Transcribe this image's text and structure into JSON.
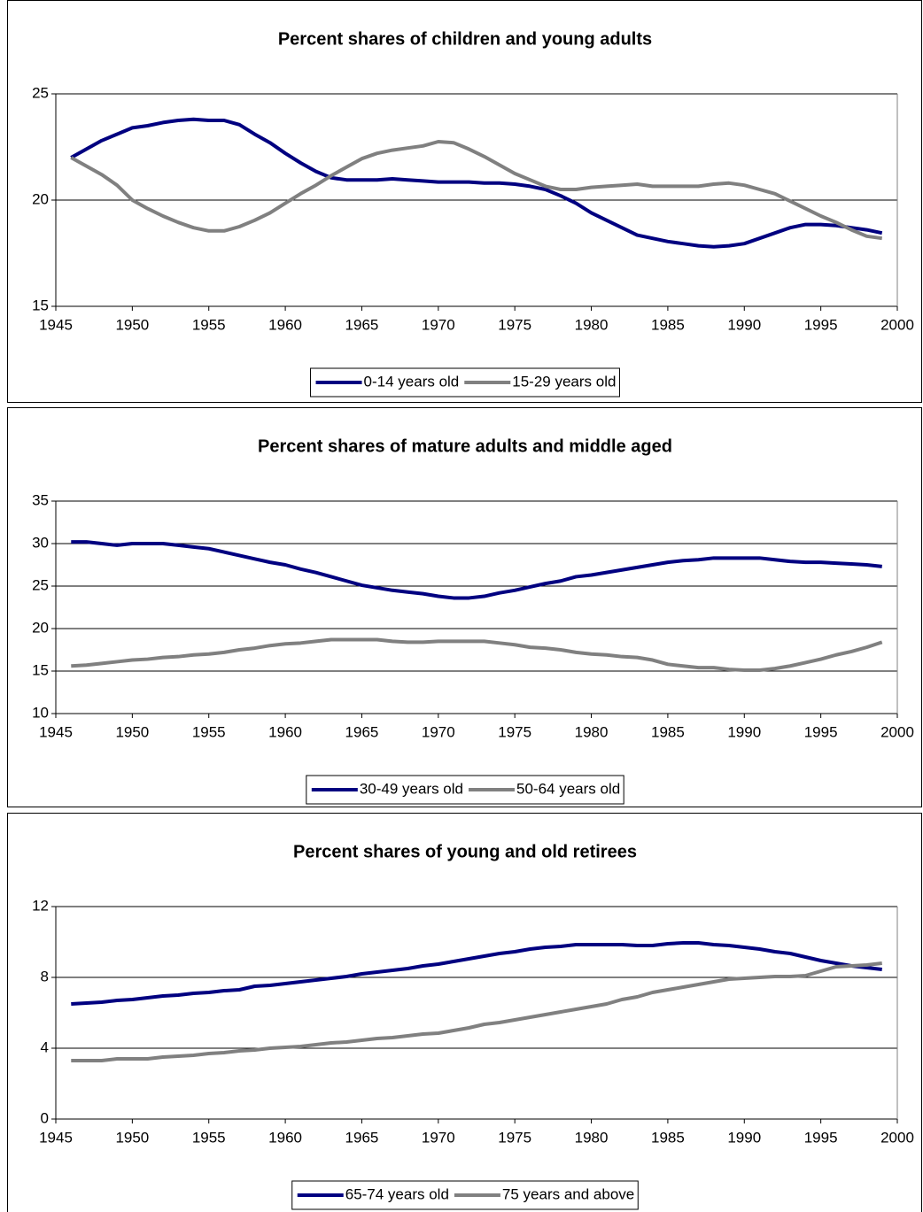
{
  "chart_data": [
    {
      "type": "line",
      "title": "Percent shares of children and young adults",
      "x": [
        1946,
        1947,
        1948,
        1949,
        1950,
        1951,
        1952,
        1953,
        1954,
        1955,
        1956,
        1957,
        1958,
        1959,
        1960,
        1961,
        1962,
        1963,
        1964,
        1965,
        1966,
        1967,
        1968,
        1969,
        1970,
        1971,
        1972,
        1973,
        1974,
        1975,
        1976,
        1977,
        1978,
        1979,
        1980,
        1981,
        1982,
        1983,
        1984,
        1985,
        1986,
        1987,
        1988,
        1989,
        1990,
        1991,
        1992,
        1993,
        1994,
        1995,
        1996,
        1997,
        1998,
        1999
      ],
      "xlim": [
        1945,
        2000
      ],
      "xticks": [
        1945,
        1950,
        1955,
        1960,
        1965,
        1970,
        1975,
        1980,
        1985,
        1990,
        1995,
        2000
      ],
      "ylim": [
        15,
        25
      ],
      "yticks": [
        15,
        20,
        25
      ],
      "grid": true,
      "legend": "bottom",
      "series": [
        {
          "name": "0-14 years old",
          "color": "#000080",
          "values": [
            22.0,
            22.4,
            22.8,
            23.1,
            23.4,
            23.5,
            23.65,
            23.75,
            23.8,
            23.75,
            23.75,
            23.55,
            23.1,
            22.7,
            22.2,
            21.75,
            21.35,
            21.05,
            20.95,
            20.95,
            20.95,
            21.0,
            20.95,
            20.9,
            20.85,
            20.85,
            20.85,
            20.8,
            20.8,
            20.75,
            20.65,
            20.5,
            20.2,
            19.85,
            19.4,
            19.05,
            18.7,
            18.35,
            18.2,
            18.05,
            17.95,
            17.85,
            17.8,
            17.85,
            17.95,
            18.2,
            18.45,
            18.7,
            18.85,
            18.85,
            18.8,
            18.7,
            18.6,
            18.45
          ]
        },
        {
          "name": "15-29 years old",
          "color": "#808080",
          "values": [
            22.0,
            21.6,
            21.2,
            20.7,
            20.0,
            19.6,
            19.25,
            18.95,
            18.7,
            18.55,
            18.55,
            18.75,
            19.05,
            19.4,
            19.85,
            20.3,
            20.7,
            21.15,
            21.55,
            21.95,
            22.2,
            22.35,
            22.45,
            22.55,
            22.75,
            22.7,
            22.4,
            22.05,
            21.65,
            21.25,
            20.95,
            20.65,
            20.5,
            20.5,
            20.6,
            20.65,
            20.7,
            20.75,
            20.65,
            20.65,
            20.65,
            20.65,
            20.75,
            20.8,
            20.7,
            20.5,
            20.3,
            19.95,
            19.6,
            19.25,
            18.95,
            18.6,
            18.3,
            18.2
          ]
        }
      ]
    },
    {
      "type": "line",
      "title": "Percent shares of mature adults and middle aged",
      "x": [
        1946,
        1947,
        1948,
        1949,
        1950,
        1951,
        1952,
        1953,
        1954,
        1955,
        1956,
        1957,
        1958,
        1959,
        1960,
        1961,
        1962,
        1963,
        1964,
        1965,
        1966,
        1967,
        1968,
        1969,
        1970,
        1971,
        1972,
        1973,
        1974,
        1975,
        1976,
        1977,
        1978,
        1979,
        1980,
        1981,
        1982,
        1983,
        1984,
        1985,
        1986,
        1987,
        1988,
        1989,
        1990,
        1991,
        1992,
        1993,
        1994,
        1995,
        1996,
        1997,
        1998,
        1999
      ],
      "xlim": [
        1945,
        2000
      ],
      "xticks": [
        1945,
        1950,
        1955,
        1960,
        1965,
        1970,
        1975,
        1980,
        1985,
        1990,
        1995,
        2000
      ],
      "ylim": [
        10,
        35
      ],
      "yticks": [
        10,
        15,
        20,
        25,
        30,
        35
      ],
      "grid": true,
      "legend": "bottom",
      "series": [
        {
          "name": "30-49 years old",
          "color": "#000080",
          "values": [
            30.2,
            30.2,
            30.0,
            29.8,
            30.0,
            30.0,
            30.0,
            29.8,
            29.6,
            29.4,
            29.0,
            28.6,
            28.2,
            27.8,
            27.5,
            27.0,
            26.6,
            26.1,
            25.6,
            25.1,
            24.8,
            24.5,
            24.3,
            24.1,
            23.8,
            23.6,
            23.6,
            23.8,
            24.2,
            24.5,
            24.9,
            25.3,
            25.6,
            26.1,
            26.3,
            26.6,
            26.9,
            27.2,
            27.5,
            27.8,
            28.0,
            28.1,
            28.3,
            28.3,
            28.3,
            28.3,
            28.1,
            27.9,
            27.8,
            27.8,
            27.7,
            27.6,
            27.5,
            27.3
          ]
        },
        {
          "name": "50-64 years old",
          "color": "#808080",
          "values": [
            15.6,
            15.7,
            15.9,
            16.1,
            16.3,
            16.4,
            16.6,
            16.7,
            16.9,
            17.0,
            17.2,
            17.5,
            17.7,
            18.0,
            18.2,
            18.3,
            18.5,
            18.7,
            18.7,
            18.7,
            18.7,
            18.5,
            18.4,
            18.4,
            18.5,
            18.5,
            18.5,
            18.5,
            18.3,
            18.1,
            17.8,
            17.7,
            17.5,
            17.2,
            17.0,
            16.9,
            16.7,
            16.6,
            16.3,
            15.8,
            15.6,
            15.4,
            15.4,
            15.2,
            15.1,
            15.1,
            15.3,
            15.6,
            16.0,
            16.4,
            16.9,
            17.3,
            17.8,
            18.4
          ]
        }
      ]
    },
    {
      "type": "line",
      "title": "Percent shares of young and old retirees",
      "x": [
        1946,
        1947,
        1948,
        1949,
        1950,
        1951,
        1952,
        1953,
        1954,
        1955,
        1956,
        1957,
        1958,
        1959,
        1960,
        1961,
        1962,
        1963,
        1964,
        1965,
        1966,
        1967,
        1968,
        1969,
        1970,
        1971,
        1972,
        1973,
        1974,
        1975,
        1976,
        1977,
        1978,
        1979,
        1980,
        1981,
        1982,
        1983,
        1984,
        1985,
        1986,
        1987,
        1988,
        1989,
        1990,
        1991,
        1992,
        1993,
        1994,
        1995,
        1996,
        1997,
        1998,
        1999
      ],
      "xlim": [
        1945,
        2000
      ],
      "xticks": [
        1945,
        1950,
        1955,
        1960,
        1965,
        1970,
        1975,
        1980,
        1985,
        1990,
        1995,
        2000
      ],
      "ylim": [
        0,
        12
      ],
      "yticks": [
        0,
        4,
        8,
        12
      ],
      "grid": true,
      "legend": "bottom",
      "series": [
        {
          "name": "65-74 years old",
          "color": "#000080",
          "values": [
            6.5,
            6.55,
            6.6,
            6.7,
            6.75,
            6.85,
            6.95,
            7.0,
            7.1,
            7.15,
            7.25,
            7.3,
            7.5,
            7.55,
            7.65,
            7.75,
            7.85,
            7.95,
            8.05,
            8.2,
            8.3,
            8.4,
            8.5,
            8.65,
            8.75,
            8.9,
            9.05,
            9.2,
            9.35,
            9.45,
            9.6,
            9.7,
            9.75,
            9.85,
            9.85,
            9.85,
            9.85,
            9.8,
            9.8,
            9.9,
            9.95,
            9.95,
            9.85,
            9.8,
            9.7,
            9.6,
            9.45,
            9.35,
            9.15,
            8.95,
            8.8,
            8.65,
            8.55,
            8.45
          ]
        },
        {
          "name": "75 years and above",
          "color": "#808080",
          "values": [
            3.3,
            3.3,
            3.3,
            3.4,
            3.4,
            3.4,
            3.5,
            3.55,
            3.6,
            3.7,
            3.75,
            3.85,
            3.9,
            4.0,
            4.05,
            4.1,
            4.2,
            4.3,
            4.35,
            4.45,
            4.55,
            4.6,
            4.7,
            4.8,
            4.85,
            5.0,
            5.15,
            5.35,
            5.45,
            5.6,
            5.75,
            5.9,
            6.05,
            6.2,
            6.35,
            6.5,
            6.75,
            6.9,
            7.15,
            7.3,
            7.45,
            7.6,
            7.75,
            7.9,
            7.95,
            8.0,
            8.05,
            8.05,
            8.1,
            8.35,
            8.6,
            8.65,
            8.7,
            8.8
          ]
        }
      ]
    }
  ]
}
